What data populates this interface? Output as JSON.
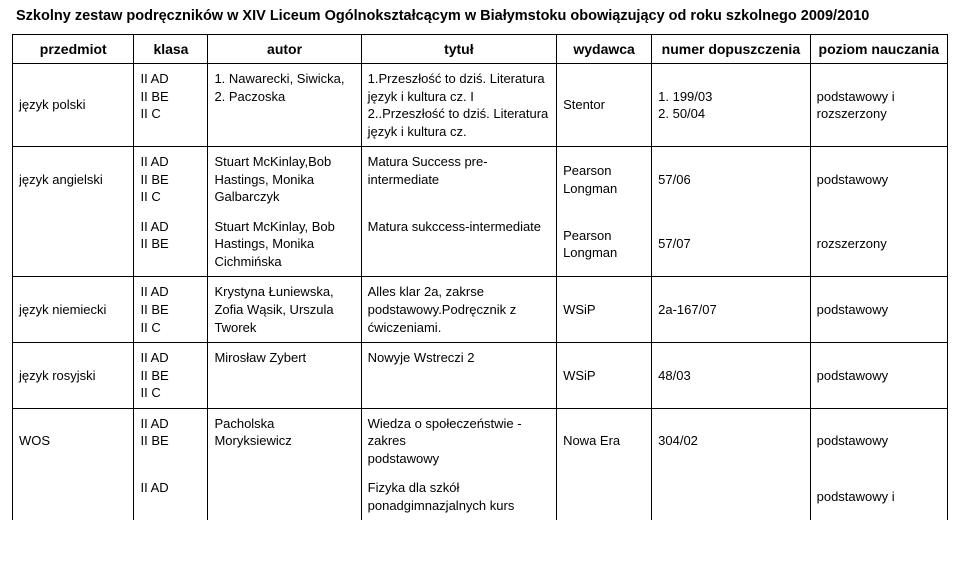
{
  "page": {
    "title": "Szkolny zestaw  podręczników w XIV Liceum Ogólnokształcącym w Białymstoku obowiązujący od roku szkolnego 2009/2010"
  },
  "headers": {
    "przedmiot": "przedmiot",
    "klasa": "klasa",
    "autor": "autor",
    "tytul": "tytuł",
    "wydawca": "wydawca",
    "numer": "numer dopuszczenia",
    "poziom": "poziom nauczania"
  },
  "rows": [
    {
      "przedmiot": "język polski",
      "klasa": "II AD\nII BE\nII C",
      "autor": "1. Nawarecki, Siwicka, 2. Paczoska",
      "tytul": "1.Przeszłość to dziś. Literatura język i kultura cz. I\n2..Przeszłość to dziś. Literatura język i kultura cz.",
      "wydawca": "Stentor",
      "numer": "1. 199/03\n2. 50/04",
      "poziom": "podstawowy i rozszerzony",
      "group_end": true
    },
    {
      "przedmiot": "język angielski",
      "klasa": "II AD\nII BE\nII C",
      "autor": "Stuart McKinlay,Bob Hastings, Monika Galbarczyk",
      "tytul": "Matura Success pre-intermediate",
      "wydawca": "Pearson Longman",
      "numer": "57/06",
      "poziom": "podstawowy",
      "group_end": false
    },
    {
      "przedmiot": "",
      "klasa": "II AD\nII BE",
      "autor": "Stuart McKinlay, Bob Hastings, Monika Cichmińska",
      "tytul": "Matura sukccess-intermediate",
      "wydawca": "Pearson Longman",
      "numer": "57/07",
      "poziom": "rozszerzony",
      "group_end": true
    },
    {
      "przedmiot": "język niemiecki",
      "klasa": "II AD\nII BE\nII C",
      "autor": "Krystyna Łuniewska, Zofia Wąsik, Urszula Tworek",
      "tytul": "Alles klar 2a, zakrse podstawowy.Podręcznik z ćwiczeniami.",
      "wydawca": "WSiP",
      "numer": "2a-167/07",
      "poziom": "podstawowy",
      "group_end": true
    },
    {
      "przedmiot": "język rosyjski",
      "klasa": "II AD\nII BE\nII C",
      "autor": "Mirosław Zybert",
      "tytul": "Nowyje Wstreczi 2",
      "wydawca": "WSiP",
      "numer": "48/03",
      "poziom": "podstawowy",
      "group_end": true
    },
    {
      "przedmiot": "WOS",
      "klasa": "II AD\nII BE",
      "autor": "Pacholska Moryksiewicz",
      "tytul": "Wiedza o społeczeństwie - zakres\npodstawowy",
      "wydawca": "Nowa Era",
      "numer": "304/02",
      "poziom": "podstawowy",
      "group_end": false
    },
    {
      "przedmiot": "",
      "klasa": "II AD",
      "autor": "",
      "tytul": "Fizyka dla szkół ponadgimnazjalnych kurs",
      "wydawca": "",
      "numer": "",
      "poziom": "podstawowy i",
      "group_end": false,
      "last": true
    }
  ]
}
